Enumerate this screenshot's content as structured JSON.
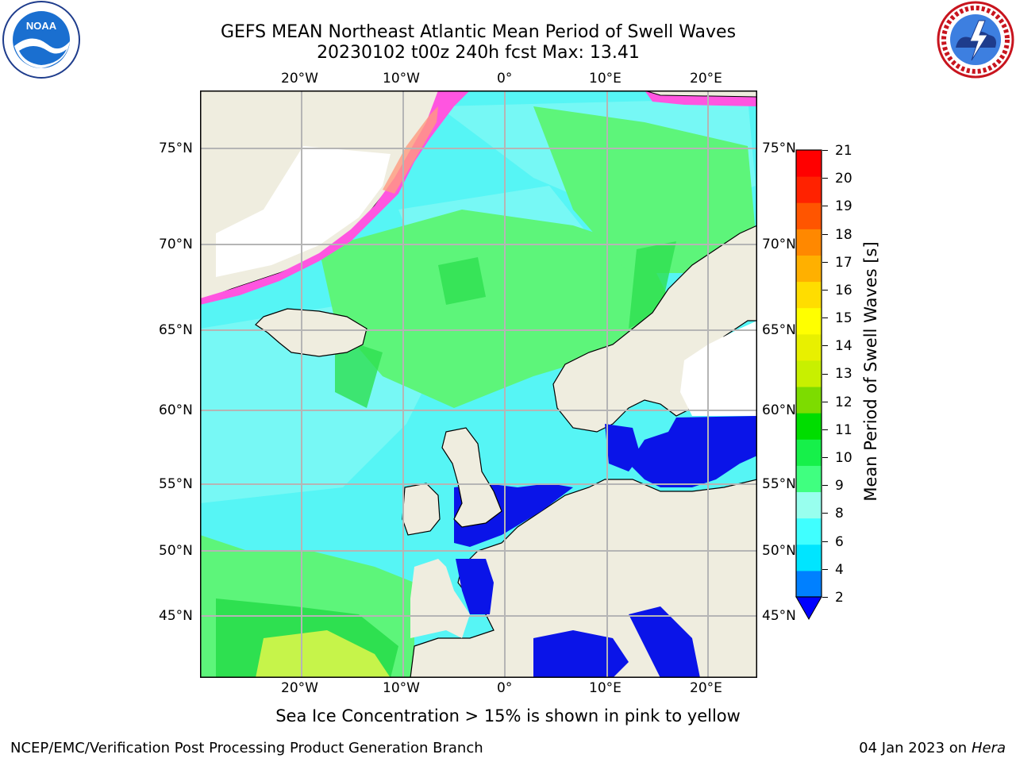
{
  "header": {
    "title_line1": "GEFS MEAN Northeast Atlantic Mean Period of Swell Waves",
    "title_line2": "20230102 t00z 240h fcst   Max: 13.41"
  },
  "logos": {
    "left": {
      "text": "NOAA",
      "ring_text": "NATIONAL OCEANIC AND ATMOSPHERIC ADMINISTRATION · U.S. DEPARTMENT OF COMMERCE"
    },
    "right": {
      "ring_text": "NATIONAL WEATHER SERVICE"
    }
  },
  "map": {
    "lon_labels": [
      "20°W",
      "10°W",
      "0°",
      "10°E",
      "20°E"
    ],
    "lat_labels": [
      "75°N",
      "70°N",
      "65°N",
      "60°N",
      "55°N",
      "50°N",
      "45°N"
    ],
    "colors": {
      "land": "#efeddf",
      "ocean_light": "#74f8f8",
      "ocean_mid": "#3bf2f2",
      "ocean_green": "#5af47a",
      "green_dark": "#2ee050",
      "yellow_green": "#cdf53c",
      "deep_blue": "#0a14e8",
      "ice_pink": "#ff55e0",
      "grid": "#b5b5b5"
    }
  },
  "colorbar": {
    "label": "Mean Period of Swell Waves [s]",
    "ticks": [
      "21",
      "20",
      "19",
      "18",
      "17",
      "16",
      "15",
      "14",
      "13",
      "12",
      "11",
      "10",
      "9",
      "8",
      "6",
      "4",
      "2"
    ],
    "colors": [
      "#0000ff",
      "#0080ff",
      "#00e5ff",
      "#40ffff",
      "#98ffee",
      "#40ff80",
      "#16f04a",
      "#00dd00",
      "#7ddc00",
      "#c8f000",
      "#e8f000",
      "#ffff00",
      "#ffdd00",
      "#ffb000",
      "#ff8800",
      "#ff5500",
      "#ff2200",
      "#ff0000"
    ]
  },
  "caption": "Sea Ice Concentration > 15% is shown in pink to yellow",
  "footer": {
    "left": "NCEP/EMC/Verification Post Processing Product Generation Branch",
    "date": "04 Jan 2023 on ",
    "host": "Hera"
  }
}
